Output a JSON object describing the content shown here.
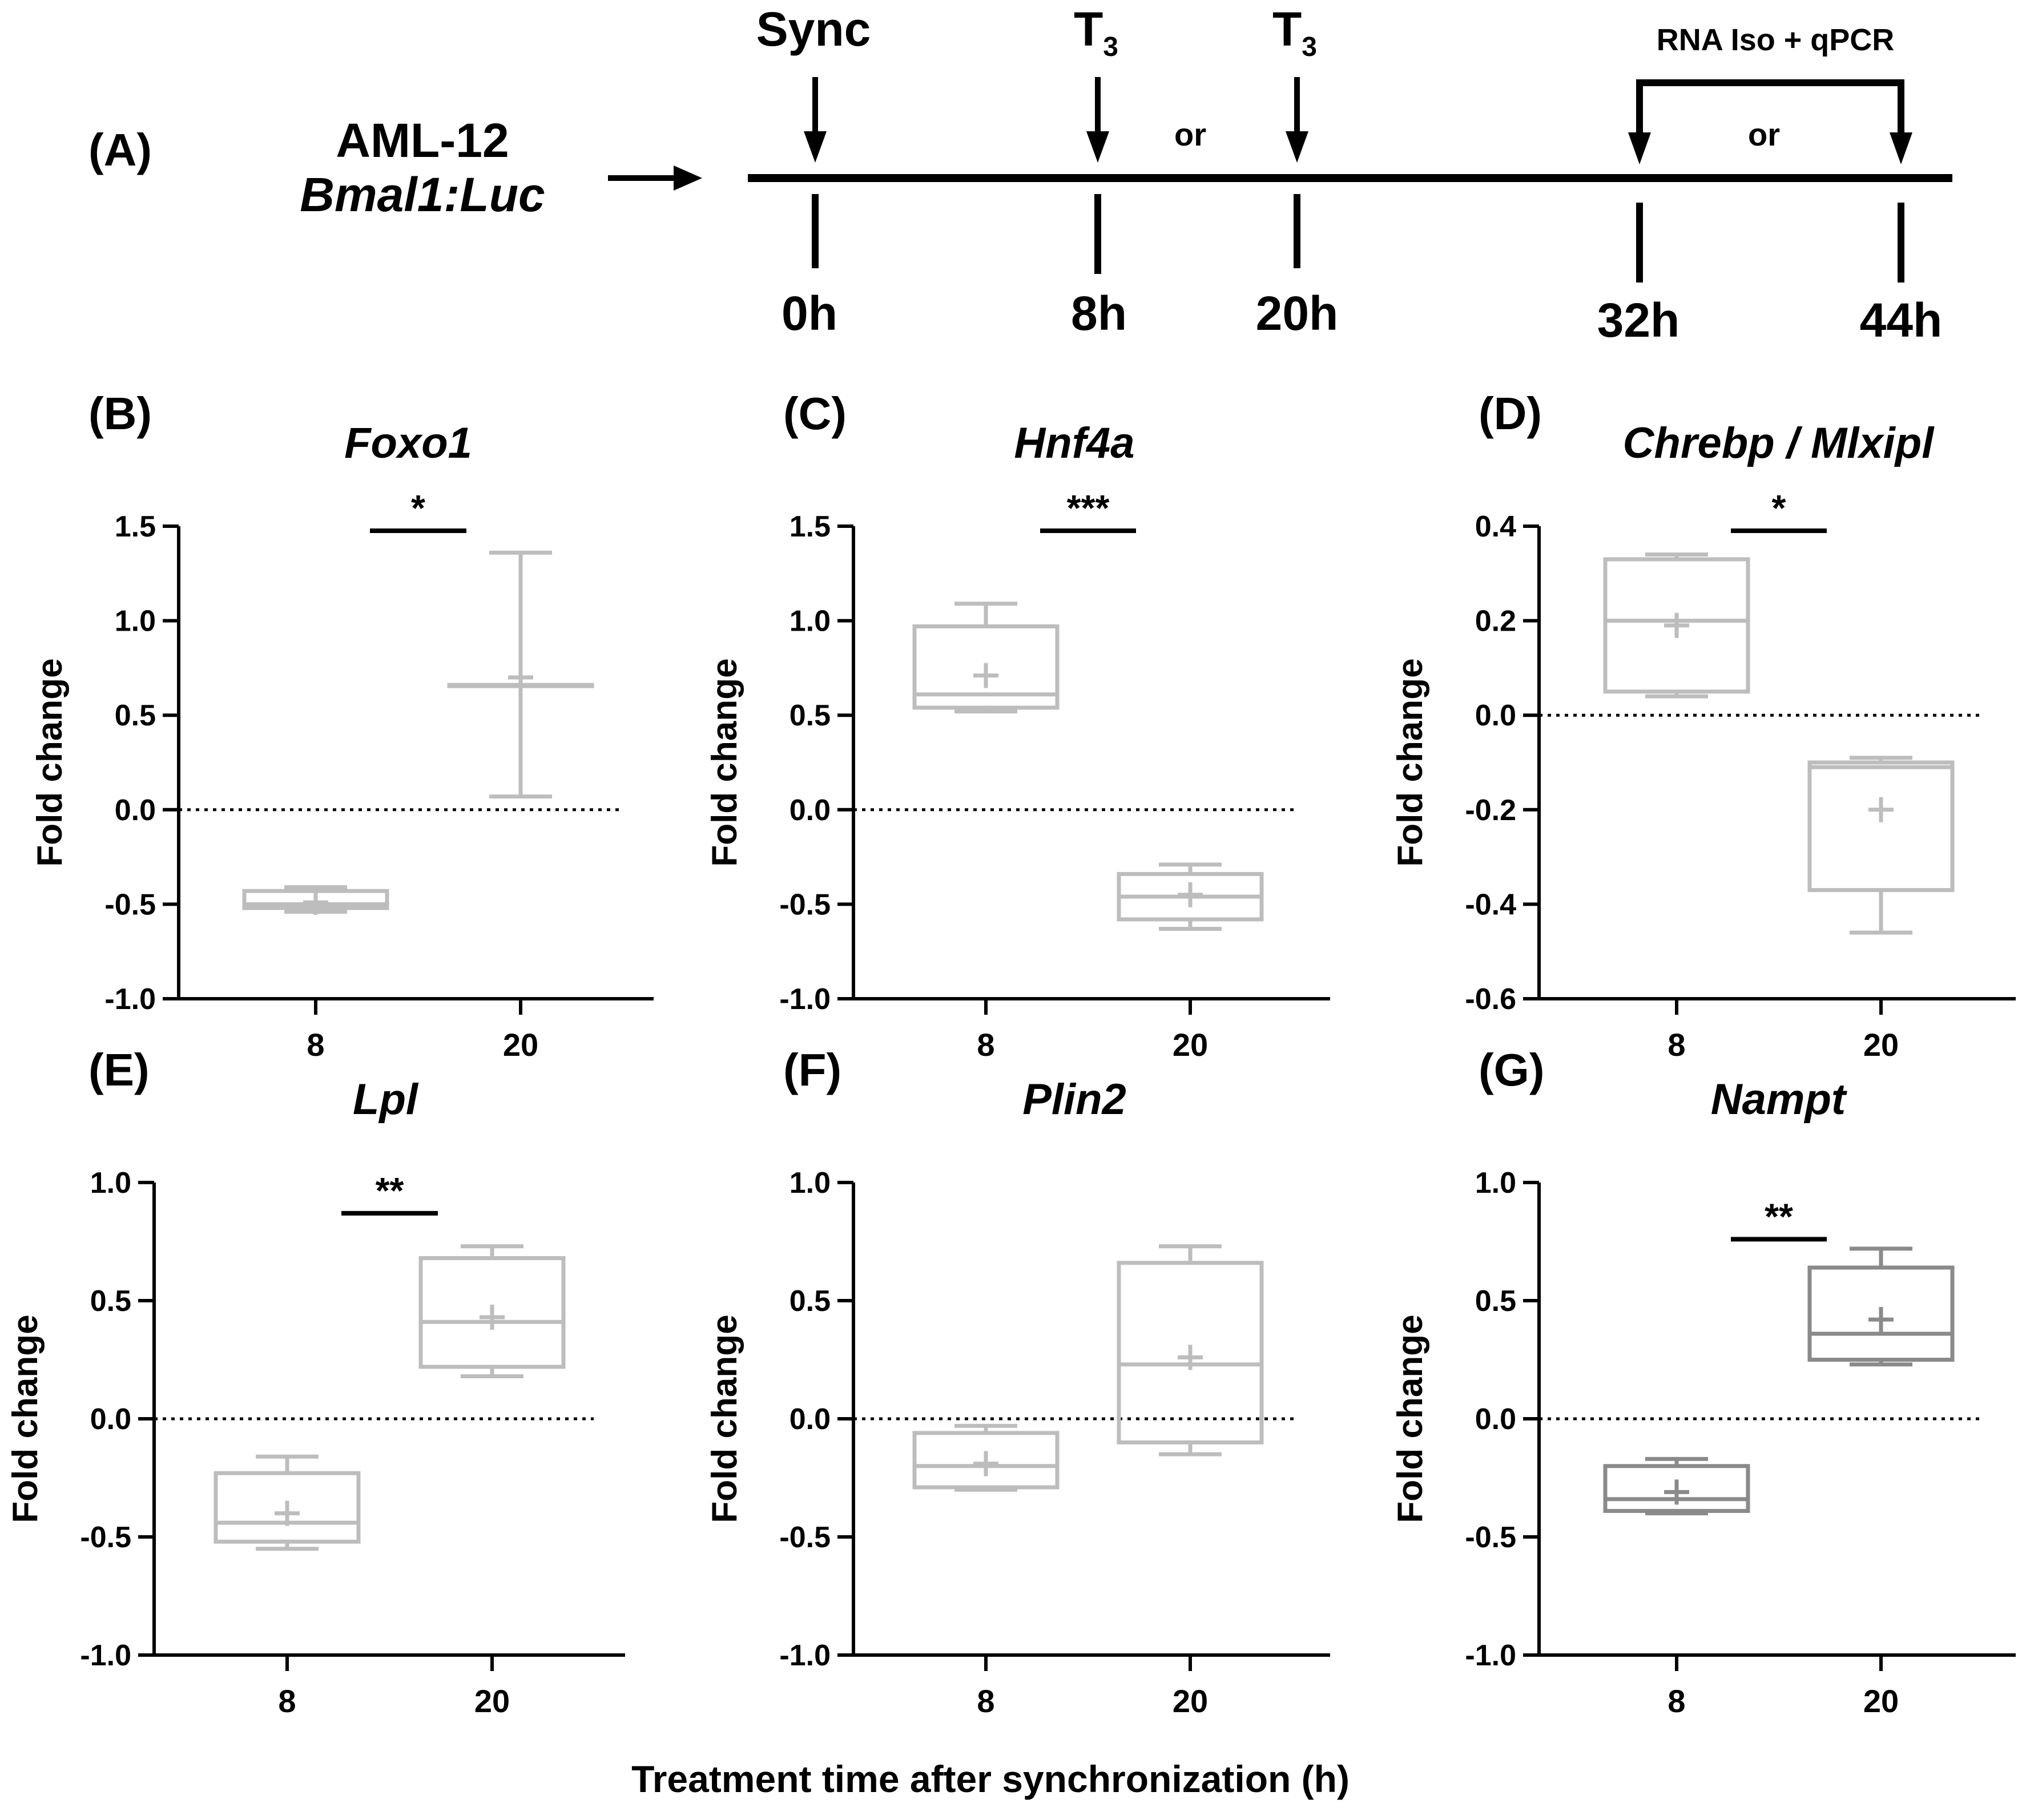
{
  "timeline": {
    "panel_label": "(A)",
    "cell_line": "AML-12",
    "reporter": "Bmal1:Luc",
    "sync_label": "Sync",
    "treatment_label": "T",
    "treatment_subscript": "3",
    "or_label": "or",
    "harvest_label": "RNA Iso + qPCR",
    "timepoints": [
      "0h",
      "8h",
      "20h",
      "32h",
      "44h"
    ]
  },
  "x_axis_title": "Treatment time after synchronization (h)",
  "colors": {
    "light_box": "#bdbdbd",
    "dark_box": "#8a8a8a",
    "axis": "#000000"
  },
  "chart_data": [
    {
      "type": "box",
      "panel": "(B)",
      "title": "Foxo1",
      "ylabel": "Fold change",
      "categories": [
        "8",
        "20"
      ],
      "ylim": [
        -1.0,
        1.5
      ],
      "yticks": [
        "1.5",
        "1.0",
        "0.5",
        "0.0",
        "-0.5",
        "-1.0"
      ],
      "significance": "*",
      "boxes": [
        {
          "min": -0.54,
          "q1": -0.52,
          "median": -0.5,
          "q3": -0.43,
          "max": -0.41,
          "mean": -0.49
        },
        {
          "min": 0.07,
          "q1": 0.66,
          "median": 0.66,
          "q3": 0.66,
          "max": 1.36,
          "mean": 0.7
        }
      ]
    },
    {
      "type": "box",
      "panel": "(C)",
      "title": "Hnf4a",
      "ylabel": "Fold change",
      "categories": [
        "8",
        "20"
      ],
      "ylim": [
        -1.0,
        1.5
      ],
      "yticks": [
        "1.5",
        "1.0",
        "0.5",
        "0.0",
        "-0.5",
        "-1.0"
      ],
      "significance": "***",
      "boxes": [
        {
          "min": 0.52,
          "q1": 0.54,
          "median": 0.61,
          "q3": 0.97,
          "max": 1.09,
          "mean": 0.71
        },
        {
          "min": -0.63,
          "q1": -0.58,
          "median": -0.46,
          "q3": -0.34,
          "max": -0.29,
          "mean": -0.45
        }
      ]
    },
    {
      "type": "box",
      "panel": "(D)",
      "title": "Chrebp / Mlxipl",
      "ylabel": "Fold change",
      "categories": [
        "8",
        "20"
      ],
      "ylim": [
        -0.6,
        0.4
      ],
      "yticks": [
        "0.4",
        "0.2",
        "0.0",
        "-0.2",
        "-0.4",
        "-0.6"
      ],
      "significance": "*",
      "boxes": [
        {
          "min": 0.04,
          "q1": 0.05,
          "median": 0.2,
          "q3": 0.33,
          "max": 0.34,
          "mean": 0.19
        },
        {
          "min": -0.46,
          "q1": -0.37,
          "median": -0.11,
          "q3": -0.1,
          "max": -0.09,
          "mean": -0.2
        }
      ]
    },
    {
      "type": "box",
      "panel": "(E)",
      "title": "Lpl",
      "ylabel": "Fold change",
      "categories": [
        "8",
        "20"
      ],
      "ylim": [
        -1.0,
        1.0
      ],
      "yticks": [
        "1.0",
        "0.5",
        "0.0",
        "-0.5",
        "-1.0"
      ],
      "significance": "**",
      "boxes": [
        {
          "min": -0.55,
          "q1": -0.52,
          "median": -0.44,
          "q3": -0.23,
          "max": -0.16,
          "mean": -0.4
        },
        {
          "min": 0.18,
          "q1": 0.22,
          "median": 0.41,
          "q3": 0.68,
          "max": 0.73,
          "mean": 0.43
        }
      ]
    },
    {
      "type": "box",
      "panel": "(F)",
      "title": "Plin2",
      "ylabel": "Fold change",
      "categories": [
        "8",
        "20"
      ],
      "ylim": [
        -1.0,
        1.0
      ],
      "yticks": [
        "1.0",
        "0.5",
        "0.0",
        "-0.5",
        "-1.0"
      ],
      "significance": "",
      "boxes": [
        {
          "min": -0.3,
          "q1": -0.29,
          "median": -0.2,
          "q3": -0.06,
          "max": -0.03,
          "mean": -0.19
        },
        {
          "min": -0.15,
          "q1": -0.1,
          "median": 0.23,
          "q3": 0.66,
          "max": 0.73,
          "mean": 0.26
        }
      ]
    },
    {
      "type": "box",
      "panel": "(G)",
      "title": "Nampt",
      "ylabel": "Fold change",
      "categories": [
        "8",
        "20"
      ],
      "ylim": [
        -1.0,
        1.0
      ],
      "yticks": [
        "1.0",
        "0.5",
        "0.0",
        "-0.5",
        "-1.0"
      ],
      "significance": "**",
      "boxes": [
        {
          "min": -0.4,
          "q1": -0.39,
          "median": -0.34,
          "q3": -0.2,
          "max": -0.17,
          "mean": -0.31
        },
        {
          "min": 0.23,
          "q1": 0.25,
          "median": 0.36,
          "q3": 0.64,
          "max": 0.72,
          "mean": 0.42
        }
      ]
    }
  ]
}
